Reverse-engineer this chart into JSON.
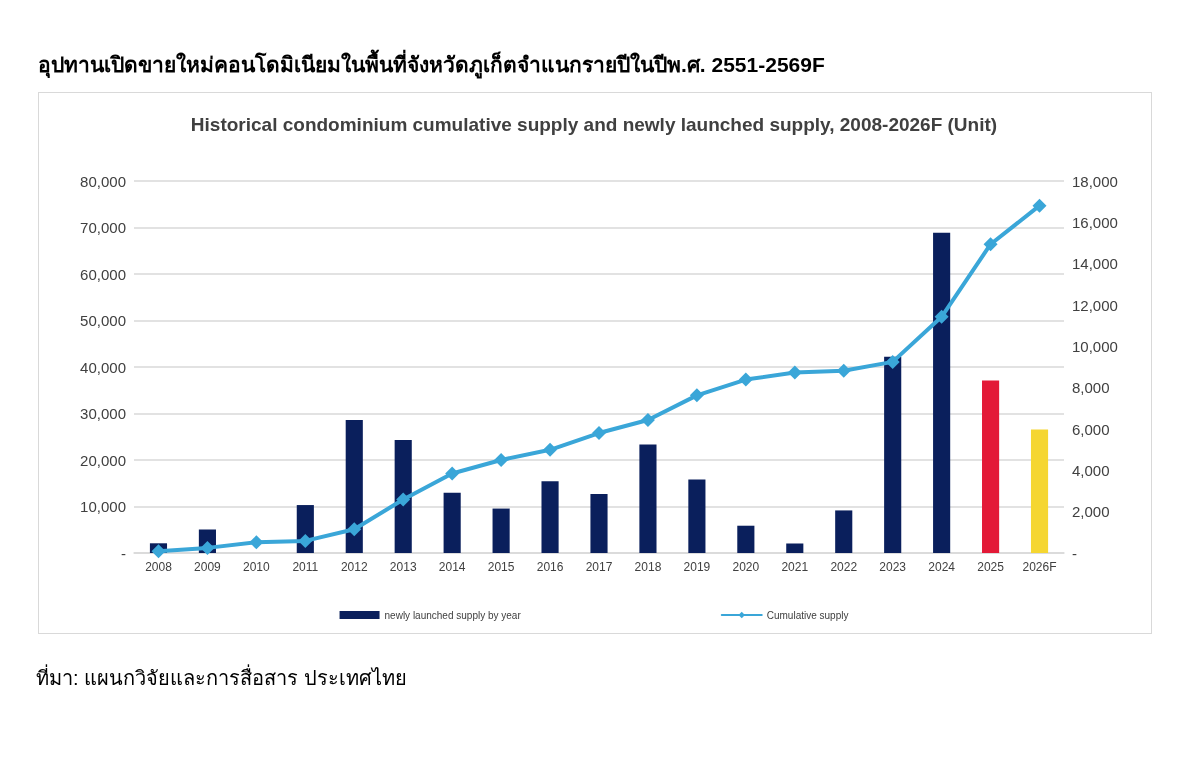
{
  "chart_data": {
    "type": "bar",
    "subtitle": "อุปทานเปิดขายใหม่คอนโดมิเนียมในพื้นที่จังหวัดภูเก็ตจำแนกรายปีในปีพ.ศ. 2551-2569F",
    "title": "Historical condominium cumulative supply and newly launched supply, 2008-2026F (Unit)",
    "categories": [
      "2008",
      "2009",
      "2010",
      "2011",
      "2012",
      "2013",
      "2014",
      "2015",
      "2016",
      "2017",
      "2018",
      "2019",
      "2020",
      "2021",
      "2022",
      "2023",
      "2024",
      "2025",
      "2026F"
    ],
    "series": [
      {
        "name": "newly launched supply by year",
        "axis": "y2",
        "color": "#0a1f5c",
        "colors": [
          "#0a1f5c",
          "#0a1f5c",
          "#0a1f5c",
          "#0a1f5c",
          "#0a1f5c",
          "#0a1f5c",
          "#0a1f5c",
          "#0a1f5c",
          "#0a1f5c",
          "#0a1f5c",
          "#0a1f5c",
          "#0a1f5c",
          "#0a1f5c",
          "#0a1f5c",
          "#0a1f5c",
          "#0a1f5c",
          "#0a1f5c",
          "#e31937",
          "#f5d631"
        ],
        "values": [
          470,
          1140,
          null,
          2320,
          6430,
          5470,
          2910,
          2150,
          3470,
          2850,
          5250,
          3560,
          1320,
          460,
          2060,
          9500,
          15500,
          8350,
          5980
        ]
      },
      {
        "name": "Cumulative supply",
        "type": "line",
        "color": "#3aa6d8",
        "marker": "diamond",
        "values": [
          400,
          1100,
          2300,
          2600,
          5100,
          11500,
          17100,
          20000,
          22200,
          25800,
          28600,
          33900,
          37300,
          38800,
          39200,
          41100,
          50800,
          66400,
          74700
        ]
      }
    ],
    "ylim": [
      0,
      80000
    ],
    "yticks": [
      {
        "value": 0,
        "label": "-"
      },
      {
        "value": 10000,
        "label": "10,000"
      },
      {
        "value": 20000,
        "label": "20,000"
      },
      {
        "value": 30000,
        "label": "30,000"
      },
      {
        "value": 40000,
        "label": "40,000"
      },
      {
        "value": 50000,
        "label": "50,000"
      },
      {
        "value": 60000,
        "label": "60,000"
      },
      {
        "value": 70000,
        "label": "70,000"
      },
      {
        "value": 80000,
        "label": "80,000"
      }
    ],
    "y2lim": [
      0,
      18000
    ],
    "y2ticks": [
      {
        "value": 0,
        "label": "-"
      },
      {
        "value": 2000,
        "label": "2,000"
      },
      {
        "value": 4000,
        "label": "4,000"
      },
      {
        "value": 6000,
        "label": "6,000"
      },
      {
        "value": 8000,
        "label": "8,000"
      },
      {
        "value": 10000,
        "label": "10,000"
      },
      {
        "value": 12000,
        "label": "12,000"
      },
      {
        "value": 14000,
        "label": "14,000"
      },
      {
        "value": 16000,
        "label": "16,000"
      },
      {
        "value": 18000,
        "label": "18,000"
      }
    ],
    "grid": "y",
    "legend": "bottom",
    "annotations": [
      "ที่มา: แผนกวิจัยและการสื่อสาร ประเทศไทย"
    ]
  }
}
